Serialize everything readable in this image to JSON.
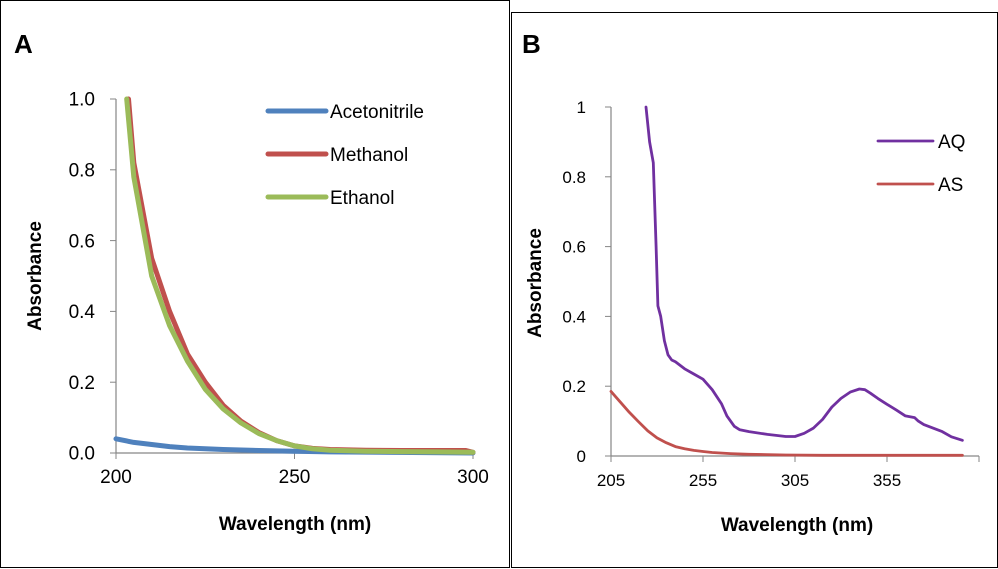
{
  "chart_data": [
    {
      "type": "line",
      "panel_label": "A",
      "xlabel": "Wavelength (nm)",
      "ylabel": "Absorbance",
      "xlim": [
        200,
        300
      ],
      "ylim": [
        0,
        1.0
      ],
      "x_ticks": [
        {
          "value": 200,
          "label": "200"
        },
        {
          "value": 250,
          "label": "250"
        },
        {
          "value": 300,
          "label": "300"
        }
      ],
      "y_ticks": [
        {
          "value": 0.0,
          "label": "0.0"
        },
        {
          "value": 0.2,
          "label": "0.2"
        },
        {
          "value": 0.4,
          "label": "0.4"
        },
        {
          "value": 0.6,
          "label": "0.6"
        },
        {
          "value": 0.8,
          "label": "0.8"
        },
        {
          "value": 1.0,
          "label": "1.0"
        }
      ],
      "grid": false,
      "legend_position": "top-right",
      "series": [
        {
          "name": "Acetonitrile",
          "color": "#4f81bd",
          "x": [
            200,
            205,
            210,
            215,
            220,
            230,
            240,
            250,
            260,
            300
          ],
          "y": [
            0.04,
            0.03,
            0.024,
            0.018,
            0.014,
            0.01,
            0.007,
            0.005,
            0.003,
            0.0
          ]
        },
        {
          "name": "Methanol",
          "color": "#c0504d",
          "x": [
            203.5,
            205,
            210,
            215,
            220,
            225,
            230,
            235,
            240,
            245,
            250,
            255,
            260,
            270,
            280,
            290,
            298,
            300
          ],
          "y": [
            1.0,
            0.82,
            0.55,
            0.4,
            0.28,
            0.2,
            0.135,
            0.09,
            0.058,
            0.035,
            0.02,
            0.013,
            0.01,
            0.008,
            0.007,
            0.007,
            0.007,
            0.002
          ]
        },
        {
          "name": "Ethanol",
          "color": "#9bbb59",
          "x": [
            203,
            205,
            210,
            215,
            220,
            225,
            230,
            235,
            240,
            245,
            250,
            255,
            260,
            270,
            280,
            290,
            300
          ],
          "y": [
            1.0,
            0.78,
            0.5,
            0.36,
            0.26,
            0.18,
            0.125,
            0.085,
            0.055,
            0.035,
            0.02,
            0.012,
            0.008,
            0.005,
            0.004,
            0.003,
            0.002
          ]
        }
      ]
    },
    {
      "type": "line",
      "panel_label": "B",
      "xlabel": "Wavelength (nm)",
      "ylabel": "Absorbance",
      "xlim": [
        205,
        405
      ],
      "ylim": [
        0,
        1
      ],
      "x_ticks": [
        {
          "value": 205,
          "label": "205"
        },
        {
          "value": 255,
          "label": "255"
        },
        {
          "value": 305,
          "label": "305"
        },
        {
          "value": 355,
          "label": "355"
        }
      ],
      "y_ticks": [
        {
          "value": 0,
          "label": "0"
        },
        {
          "value": 0.2,
          "label": "0.2"
        },
        {
          "value": 0.4,
          "label": "0.4"
        },
        {
          "value": 0.6,
          "label": "0.6"
        },
        {
          "value": 0.8,
          "label": "0.8"
        },
        {
          "value": 1,
          "label": "1"
        }
      ],
      "grid": false,
      "legend_position": "top-right",
      "series": [
        {
          "name": "AQ",
          "color": "#7030a0",
          "x": [
            224,
            226,
            228,
            229.5,
            230.5,
            232,
            234,
            236,
            238,
            240,
            245,
            250,
            255,
            260,
            265,
            268,
            272,
            275,
            280,
            290,
            300,
            305,
            310,
            315,
            320,
            325,
            330,
            335,
            340,
            343,
            346,
            350,
            355,
            360,
            365,
            370,
            372,
            375,
            380,
            385,
            390,
            396
          ],
          "y": [
            1.0,
            0.9,
            0.84,
            0.6,
            0.43,
            0.4,
            0.33,
            0.29,
            0.275,
            0.27,
            0.25,
            0.235,
            0.22,
            0.19,
            0.15,
            0.115,
            0.085,
            0.075,
            0.07,
            0.062,
            0.056,
            0.056,
            0.065,
            0.08,
            0.105,
            0.14,
            0.165,
            0.183,
            0.192,
            0.19,
            0.18,
            0.165,
            0.148,
            0.132,
            0.115,
            0.11,
            0.1,
            0.09,
            0.08,
            0.07,
            0.055,
            0.045
          ]
        },
        {
          "name": "AS",
          "color": "#c0504d",
          "x": [
            205,
            210,
            215,
            220,
            225,
            230,
            235,
            240,
            245,
            250,
            255,
            260,
            270,
            280,
            290,
            300,
            320,
            350,
            396
          ],
          "y": [
            0.185,
            0.155,
            0.125,
            0.098,
            0.072,
            0.052,
            0.038,
            0.027,
            0.021,
            0.016,
            0.013,
            0.01,
            0.007,
            0.005,
            0.004,
            0.003,
            0.002,
            0.002,
            0.002
          ]
        }
      ]
    }
  ]
}
